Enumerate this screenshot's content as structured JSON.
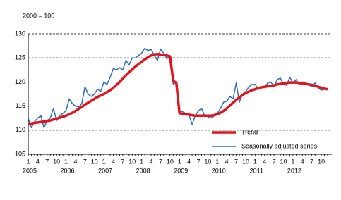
{
  "chart_data": {
    "type": "line",
    "unit_label": "2000 = 100",
    "categories": [
      "1",
      null,
      null,
      "4",
      null,
      null,
      "7",
      null,
      null,
      "10",
      null,
      null,
      "1",
      null,
      null,
      "4",
      null,
      null,
      "7",
      null,
      null,
      "10",
      null,
      null,
      "1",
      null,
      null,
      "4",
      null,
      null,
      "7",
      null,
      null,
      "10",
      null,
      null,
      "1",
      null,
      null,
      "4",
      null,
      null,
      "7",
      null,
      null,
      "10",
      null,
      null,
      "1",
      null,
      null,
      "4",
      null,
      null,
      "7",
      null,
      null,
      "10",
      null,
      null,
      "1",
      null,
      null,
      "4",
      null,
      null,
      "7",
      null,
      null,
      "10",
      null,
      null,
      "1",
      null,
      null,
      "4",
      null,
      null,
      "7",
      null,
      null,
      "10",
      null,
      null,
      "1",
      null,
      null,
      "4",
      null,
      null,
      "7",
      null,
      null,
      "10",
      null,
      null
    ],
    "year_labels": [
      "2005",
      "2006",
      "2007",
      "2008",
      "2009",
      "2010",
      "2011",
      "2012"
    ],
    "ylim": [
      105,
      130
    ],
    "yticks": [
      105,
      110,
      115,
      120,
      125,
      130
    ],
    "grid": true,
    "legend": "lower right",
    "series": [
      {
        "name": "Trend",
        "color": "#e3131b",
        "width": 3.5,
        "values": [
          111.3,
          111.4,
          111.5,
          111.6,
          111.7,
          111.8,
          111.9,
          112.0,
          112.2,
          112.4,
          112.6,
          112.8,
          113.0,
          113.3,
          113.6,
          114.0,
          114.4,
          114.8,
          115.3,
          115.7,
          116.1,
          116.5,
          116.9,
          117.2,
          117.5,
          117.9,
          118.3,
          118.8,
          119.4,
          120.0,
          120.7,
          121.4,
          122.0,
          122.6,
          123.2,
          123.7,
          124.2,
          124.7,
          125.1,
          125.5,
          125.7,
          125.8,
          125.7,
          125.6,
          125.5,
          125.3,
          120.3,
          119.8,
          113.5,
          113.4,
          113.3,
          113.2,
          113.1,
          113.0,
          113.0,
          113.0,
          113.0,
          113.0,
          113.0,
          113.1,
          113.3,
          113.6,
          114.0,
          114.5,
          115.1,
          115.7,
          116.3,
          116.8,
          117.3,
          117.7,
          118.0,
          118.3,
          118.5,
          118.7,
          118.9,
          119.0,
          119.1,
          119.2,
          119.3,
          119.5,
          119.6,
          119.7,
          119.8,
          119.9,
          119.9,
          119.9,
          119.8,
          119.7,
          119.6,
          119.5,
          119.4,
          119.2,
          119.0,
          118.8,
          118.6,
          118.5
        ]
      },
      {
        "name": "Seasonally adjusted series",
        "color": "#2e6db4",
        "width": 1.5,
        "values": [
          112.5,
          110.5,
          111.8,
          112.5,
          113.0,
          110.5,
          112.0,
          112.5,
          114.5,
          112.0,
          113.0,
          113.5,
          114.0,
          116.5,
          115.5,
          115.0,
          114.8,
          115.5,
          119.0,
          117.5,
          117.0,
          117.5,
          118.5,
          118.0,
          120.0,
          119.5,
          121.0,
          122.8,
          122.5,
          123.0,
          122.5,
          124.5,
          123.5,
          125.0,
          125.0,
          125.5,
          126.0,
          127.0,
          126.5,
          126.8,
          125.5,
          124.5,
          126.8,
          126.0,
          124.8,
          125.5,
          119.5,
          120.0,
          114.0,
          113.8,
          113.5,
          113.2,
          111.2,
          113.0,
          114.0,
          114.5,
          113.0,
          112.8,
          112.5,
          113.0,
          113.5,
          114.5,
          115.8,
          116.0,
          117.0,
          116.5,
          119.8,
          115.8,
          117.5,
          118.0,
          119.0,
          119.5,
          119.5,
          118.5,
          119.0,
          118.8,
          119.8,
          120.0,
          119.0,
          120.5,
          120.8,
          119.5,
          119.3,
          121.0,
          119.8,
          120.5,
          119.5,
          120.0,
          119.8,
          119.5,
          119.0,
          119.8,
          118.8,
          118.3,
          118.5,
          118.5
        ]
      }
    ]
  }
}
